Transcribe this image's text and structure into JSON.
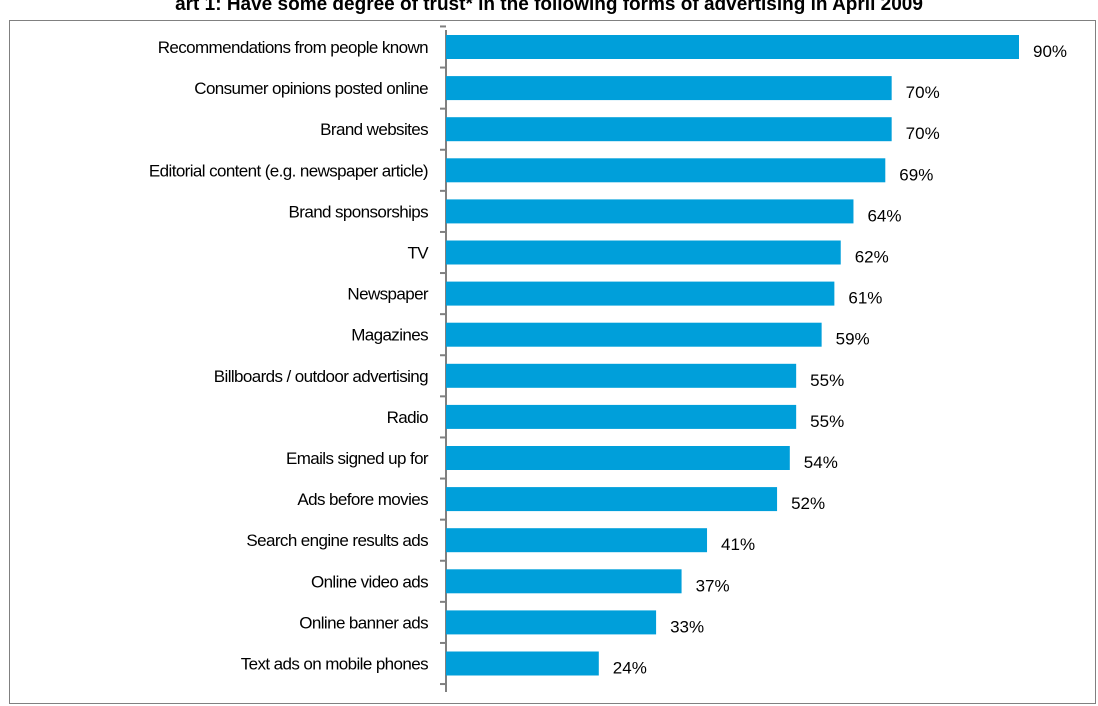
{
  "chart_data": {
    "type": "bar",
    "orientation": "horizontal",
    "title": "art 1: Have some degree of trust* in the following forms of advertising in April 2009",
    "categories": [
      "Recommendations from people known",
      "Consumer opinions posted online",
      "Brand websites",
      "Editorial content (e.g. newspaper article)",
      "Brand sponsorships",
      "TV",
      "Newspaper",
      "Magazines",
      "Billboards / outdoor advertising",
      "Radio",
      "Emails signed up for",
      "Ads before movies",
      "Search engine results ads",
      "Online video ads",
      "Online banner ads",
      "Text ads on mobile phones"
    ],
    "values": [
      90,
      70,
      70,
      69,
      64,
      62,
      61,
      59,
      55,
      55,
      54,
      52,
      41,
      37,
      33,
      24
    ],
    "value_labels": [
      "90%",
      "70%",
      "70%",
      "69%",
      "64%",
      "62%",
      "61%",
      "59%",
      "55%",
      "55%",
      "54%",
      "52%",
      "41%",
      "37%",
      "33%",
      "24%"
    ],
    "xlim": [
      0,
      100
    ],
    "grid": false,
    "bar_color": "#009fda"
  }
}
